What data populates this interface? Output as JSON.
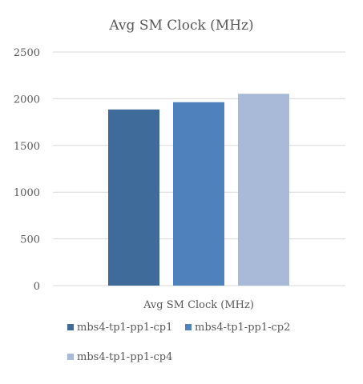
{
  "chart_data": {
    "type": "bar",
    "title": "Avg SM Clock (MHz)",
    "categories": [
      "Avg SM Clock (MHz)"
    ],
    "series": [
      {
        "name": "mbs4-tp1-pp1-cp1",
        "values": [
          1885
        ],
        "color": "#3F6B9B"
      },
      {
        "name": "mbs4-tp1-pp1-cp2",
        "values": [
          1963
        ],
        "color": "#4F81BD"
      },
      {
        "name": "mbs4-tp1-pp1-cp4",
        "values": [
          2053
        ],
        "color": "#A9B9D8"
      }
    ],
    "ylim": [
      0,
      2500
    ],
    "yticks": [
      "0",
      "500",
      "1000",
      "1500",
      "2000",
      "2500"
    ],
    "grid": true,
    "legend_position": "bottom"
  }
}
